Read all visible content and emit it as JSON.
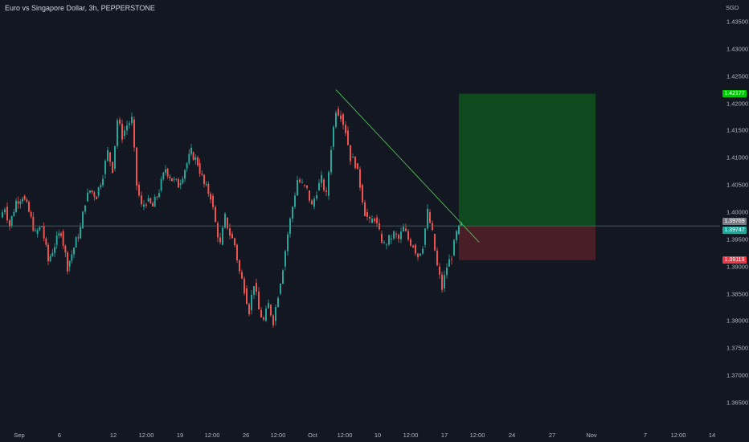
{
  "header": {
    "title": "Euro vs Singapore Dollar, 3h, PEPPERSTONE"
  },
  "price_axis": {
    "currency": "SGD",
    "ticks": [
      "1.43500",
      "1.43000",
      "1.42500",
      "1.42000",
      "1.41500",
      "1.41000",
      "1.40500",
      "1.40000",
      "1.39500",
      "1.39000",
      "1.38500",
      "1.38000",
      "1.37500",
      "1.37000",
      "1.36500"
    ]
  },
  "time_axis": {
    "ticks": [
      "Sep",
      "6",
      "12",
      "12:00",
      "19",
      "12:00",
      "26",
      "12:00",
      "Oct",
      "12:00",
      "10",
      "12:00",
      "17",
      "12:00",
      "24",
      "27",
      "Nov",
      "7",
      "12:00",
      "14"
    ]
  },
  "badges": {
    "target": {
      "label": "1.42177",
      "price": 1.42177,
      "color": "#00c805"
    },
    "current_high": {
      "label": "1.39769",
      "price": 1.39769,
      "color": "#787b86"
    },
    "current": {
      "label": "1.39747",
      "price": 1.39747,
      "color": "#26a69a"
    },
    "stop": {
      "label": "1.39119",
      "price": 1.39119,
      "color": "#f23645"
    }
  },
  "colors": {
    "background": "#131722",
    "bull": "#26a69a",
    "bear": "#ef5350",
    "trendline": "#4caf50",
    "profit_zone": "#0f4a1f",
    "loss_zone": "#4a1e26",
    "price_line": "#4a6a6a"
  },
  "chart_data": {
    "type": "candlestick",
    "title": "Euro vs Singapore Dollar, 3h, PEPPERSTONE",
    "ylim": [
      1.3625,
      1.4375
    ],
    "close_path": [
      [
        0,
        1.399
      ],
      [
        6,
        1.401
      ],
      [
        12,
        1.3975
      ],
      [
        20,
        1.402
      ],
      [
        28,
        1.403
      ],
      [
        36,
        1.4
      ],
      [
        44,
        1.396
      ],
      [
        52,
        1.3975
      ],
      [
        60,
        1.391
      ],
      [
        68,
        1.394
      ],
      [
        76,
        1.3965
      ],
      [
        84,
        1.39
      ],
      [
        92,
        1.3935
      ],
      [
        100,
        1.397
      ],
      [
        106,
        1.402
      ],
      [
        112,
        1.404
      ],
      [
        120,
        1.403
      ],
      [
        128,
        1.407
      ],
      [
        134,
        1.411
      ],
      [
        140,
        1.408
      ],
      [
        146,
        1.417
      ],
      [
        152,
        1.414
      ],
      [
        158,
        1.416
      ],
      [
        164,
        1.417
      ],
      [
        170,
        1.405
      ],
      [
        176,
        1.401
      ],
      [
        182,
        1.402
      ],
      [
        190,
        1.401
      ],
      [
        198,
        1.404
      ],
      [
        206,
        1.408
      ],
      [
        214,
        1.406
      ],
      [
        222,
        1.405
      ],
      [
        230,
        1.408
      ],
      [
        238,
        1.411
      ],
      [
        246,
        1.409
      ],
      [
        254,
        1.405
      ],
      [
        262,
        1.403
      ],
      [
        268,
        1.398
      ],
      [
        274,
        1.394
      ],
      [
        280,
        1.399
      ],
      [
        286,
        1.396
      ],
      [
        292,
        1.394
      ],
      [
        298,
        1.389
      ],
      [
        304,
        1.386
      ],
      [
        310,
        1.382
      ],
      [
        316,
        1.387
      ],
      [
        322,
        1.382
      ],
      [
        328,
        1.38
      ],
      [
        334,
        1.383
      ],
      [
        340,
        1.38
      ],
      [
        346,
        1.385
      ],
      [
        352,
        1.39
      ],
      [
        358,
        1.396
      ],
      [
        364,
        1.401
      ],
      [
        370,
        1.406
      ],
      [
        376,
        1.405
      ],
      [
        382,
        1.404
      ],
      [
        388,
        1.401
      ],
      [
        394,
        1.404
      ],
      [
        400,
        1.406
      ],
      [
        406,
        1.403
      ],
      [
        412,
        1.412
      ],
      [
        418,
        1.419
      ],
      [
        424,
        1.418
      ],
      [
        430,
        1.415
      ],
      [
        436,
        1.41
      ],
      [
        442,
        1.409
      ],
      [
        448,
        1.405
      ],
      [
        454,
        1.4
      ],
      [
        460,
        1.398
      ],
      [
        466,
        1.399
      ],
      [
        472,
        1.396
      ],
      [
        478,
        1.394
      ],
      [
        484,
        1.395
      ],
      [
        490,
        1.396
      ],
      [
        496,
        1.395
      ],
      [
        502,
        1.397
      ],
      [
        508,
        1.395
      ],
      [
        514,
        1.394
      ],
      [
        520,
        1.392
      ],
      [
        526,
        1.394
      ],
      [
        532,
        1.4
      ],
      [
        538,
        1.396
      ],
      [
        544,
        1.39
      ],
      [
        550,
        1.386
      ],
      [
        556,
        1.39
      ],
      [
        562,
        1.392
      ],
      [
        568,
        1.396
      ],
      [
        574,
        1.3976
      ]
    ],
    "trendline": {
      "from": [
        418,
        1.4225
      ],
      "to": [
        596,
        1.3945
      ]
    },
    "position": {
      "entry": 1.39747,
      "target": 1.42177,
      "stop": 1.39119,
      "x_start": 571,
      "x_end": 741
    },
    "current_price": 1.39747
  }
}
